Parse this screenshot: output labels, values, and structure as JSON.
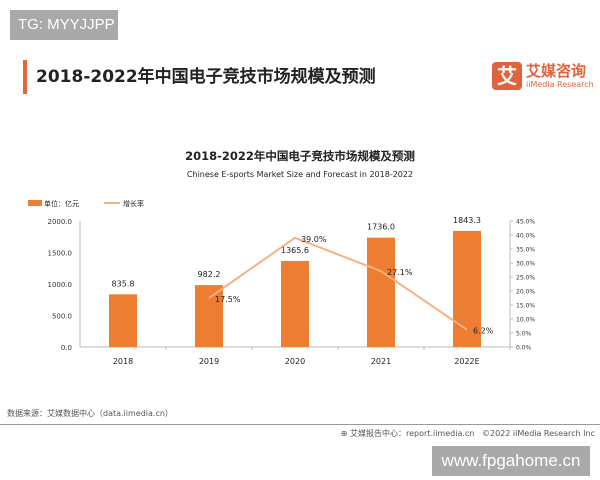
{
  "watermarks": {
    "top_left": "TG: MYYJJPP",
    "bottom_right": "www.fpgahome.cn"
  },
  "header": {
    "title": "2018-2022年中国电子竞技市场规模及预测",
    "logo_mark": "艾",
    "logo_cn": "艾媒咨询",
    "logo_en": "iiMedia Research"
  },
  "colors": {
    "bar": "#ed7d31",
    "line": "#f4b183",
    "accent": "#e8643a"
  },
  "footer": {
    "source": "数据来源：艾媒数据中心（data.iimedia.cn）",
    "report": "艾媒报告中心：report.iimedia.cn",
    "copyright": "©2022  iiMedia Research  Inc"
  },
  "chart_data": {
    "type": "bar+line",
    "title": "2018-2022年中国电子竞技市场规模及预测",
    "subtitle": "Chinese E-sports Market Size and Forecast in 2018-2022",
    "categories": [
      "2018",
      "2019",
      "2020",
      "2021",
      "2022E"
    ],
    "series": [
      {
        "name": "单位：亿元",
        "type": "bar",
        "axis": "left",
        "values": [
          835.8,
          982.2,
          1365.6,
          1736.0,
          1843.3
        ],
        "labels": [
          "835.8",
          "982.2",
          "1365.6",
          "1736.0",
          "1843.3"
        ]
      },
      {
        "name": "增长率",
        "type": "line",
        "axis": "right",
        "values": [
          null,
          17.5,
          39.0,
          27.1,
          6.2
        ],
        "labels": [
          "",
          "17.5%",
          "39.0%",
          "27.1%",
          "6.2%"
        ]
      }
    ],
    "ylim_left": [
      0,
      2000
    ],
    "yticks_left": [
      "0.0",
      "500.0",
      "1000.0",
      "1500.0",
      "2000.0"
    ],
    "ylim_right": [
      0,
      45
    ],
    "yticks_right": [
      "0.0%",
      "5.0%",
      "10.0%",
      "15.0%",
      "20.0%",
      "25.0%",
      "30.0%",
      "35.0%",
      "40.0%",
      "45.0%"
    ],
    "legend": "top-left",
    "grid": false
  }
}
